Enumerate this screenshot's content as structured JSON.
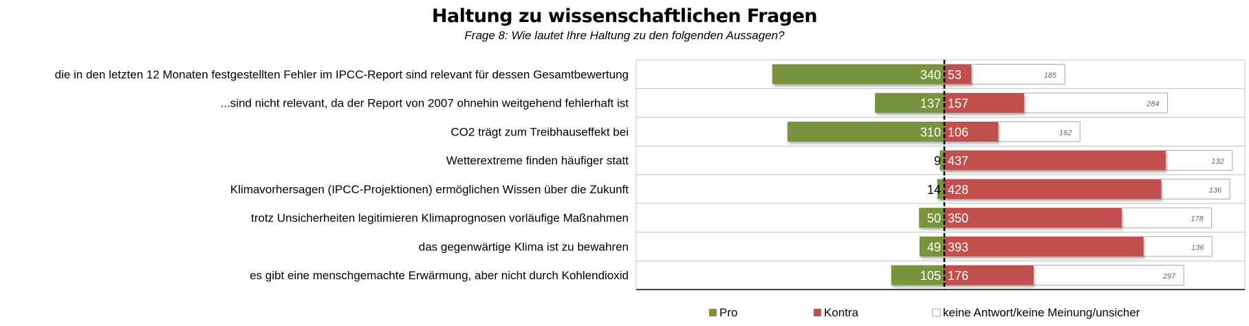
{
  "chart_data": {
    "type": "bar",
    "orientation": "horizontal-diverging-stacked",
    "title": "Haltung zu wissenschaftlichen Fragen",
    "subtitle": "Frage 8: Wie lautet Ihre Haltung zu den folgenden Aussagen?",
    "categories": [
      "die in den letzten 12 Monaten festgestellten Fehler im IPCC-Report sind relevant für dessen Gesamtbewertung",
      "...sind nicht relevant, da der Report von 2007 ohnehin weitgehend fehlerhaft ist",
      "CO2 trägt zum Treibhauseffekt bei",
      "Wetterextreme finden häufiger statt",
      "Klimavorhersagen (IPCC-Projektionen) ermöglichen Wissen über die Zukunft",
      "trotz Unsicherheiten legitimieren Klimaprognosen vorläufige Maßnahmen",
      "das gegenwärtige Klima ist zu bewahren",
      "es gibt eine menschgemachte Erwärmung, aber nicht durch Kohlendioxid"
    ],
    "series": [
      {
        "name": "Pro",
        "color": "#77933C",
        "values": [
          340,
          137,
          310,
          9,
          14,
          50,
          49,
          105
        ]
      },
      {
        "name": "Kontra",
        "color": "#C0504D",
        "values": [
          53,
          157,
          106,
          437,
          428,
          350,
          393,
          176
        ]
      },
      {
        "name": "keine Antwort/keine Meinung/unsicher",
        "color": "#FFFFFF",
        "values": [
          185,
          284,
          162,
          132,
          136,
          178,
          136,
          297
        ]
      }
    ],
    "legend_position": "bottom",
    "grid": true
  }
}
